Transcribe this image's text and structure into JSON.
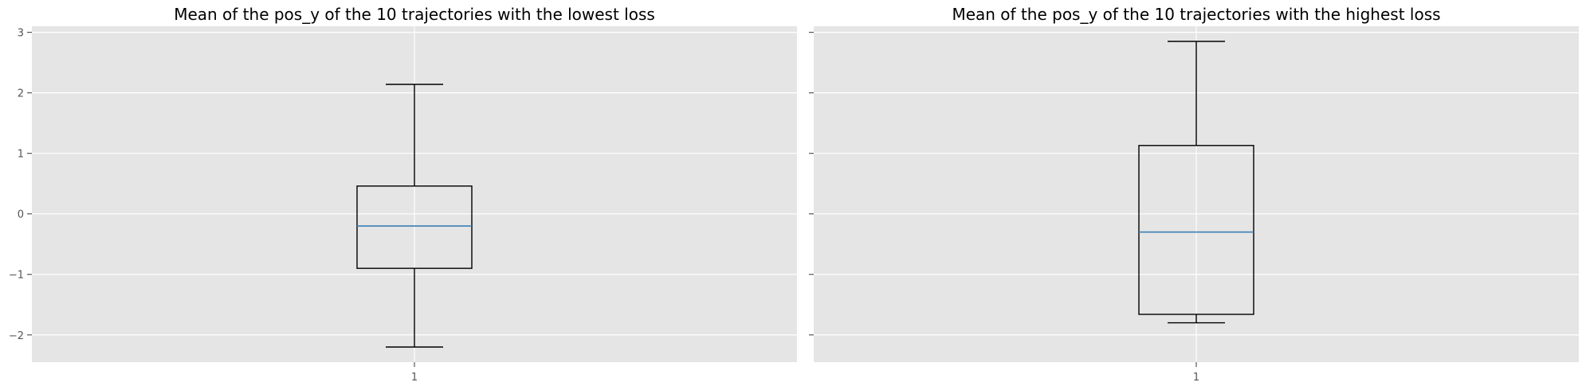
{
  "chart_data": [
    {
      "type": "box",
      "title": "Mean of the pos_y of the 10 trajectories with the lowest loss",
      "categories": [
        "1"
      ],
      "box": {
        "whisker_low": -2.2,
        "q1": -0.9,
        "median": -0.2,
        "q3": 0.46,
        "whisker_high": 2.14
      },
      "ylim": [
        -2.45,
        3.1
      ],
      "yticks": [
        -2,
        -1,
        0,
        1,
        2,
        3
      ],
      "ytick_labels": [
        "−2",
        "−1",
        "0",
        "1",
        "2",
        "3"
      ],
      "grid": true
    },
    {
      "type": "box",
      "title": "Mean of the pos_y of the 10 trajectories with the highest loss",
      "categories": [
        "1"
      ],
      "box": {
        "whisker_low": -1.8,
        "q1": -1.66,
        "median": -0.3,
        "q3": 1.13,
        "whisker_high": 2.85
      },
      "ylim": [
        -2.45,
        3.1
      ],
      "yticks": [
        -2,
        -1,
        0,
        1,
        2,
        3
      ],
      "ytick_labels": [
        "",
        "",
        "",
        "",
        "",
        ""
      ],
      "grid": true
    }
  ],
  "colors": {
    "panel_bg": "#e5e5e5",
    "grid": "#ffffff",
    "box_edge": "#000000",
    "median": "#3b7fb5",
    "tick": "#555555"
  }
}
